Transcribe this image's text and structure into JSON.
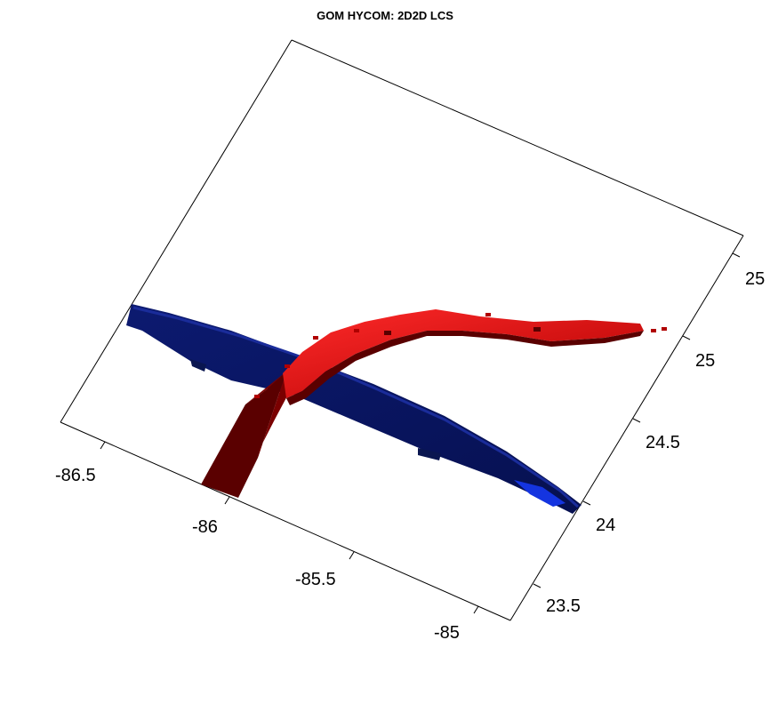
{
  "title": "GOM HYCOM: 2D2D LCS",
  "axes": {
    "x_ticks": [
      "-86.5",
      "-86",
      "-85.5",
      "-85"
    ],
    "y_ticks": [
      "23.5",
      "24",
      "24.5",
      "25",
      "25"
    ]
  },
  "colors": {
    "attracting_lcs": "#cc0000",
    "attracting_lcs_shadow": "#5a0000",
    "repelling_lcs": "#0a1a6e",
    "repelling_lcs_highlight": "#1030ff",
    "box_edge": "#000000"
  }
}
